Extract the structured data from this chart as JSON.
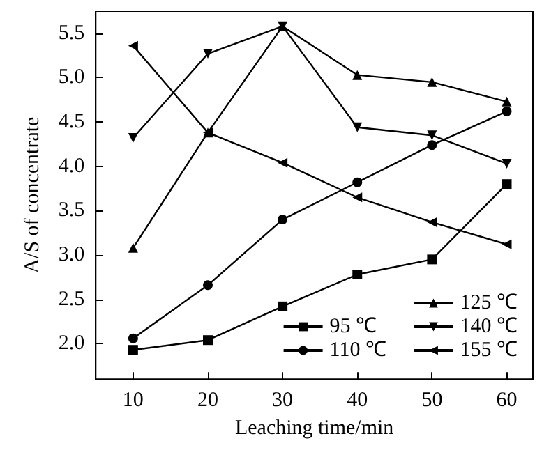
{
  "chart_data": {
    "type": "line",
    "xlabel": "Leaching time/min",
    "ylabel": "A/S of concentrate",
    "x": [
      10,
      20,
      30,
      40,
      50,
      60
    ],
    "xlim": [
      5,
      63.5
    ],
    "xticks": [
      10,
      20,
      30,
      40,
      50,
      60
    ],
    "ylim": [
      1.6,
      5.75
    ],
    "yticks": [
      {
        "value": 2,
        "label": "2.0"
      },
      2.5,
      {
        "value": 3,
        "label": "3.0"
      },
      3.5,
      {
        "value": 4,
        "label": "4.0"
      },
      4.5,
      {
        "value": 5,
        "label": "5.0"
      },
      5.5
    ],
    "legend": "bottom right",
    "grid": false,
    "line_style": "solid",
    "series": [
      {
        "name": "95 ℃",
        "color": "#000000",
        "marker": "square",
        "values": [
          1.93,
          2.04,
          2.42,
          2.78,
          2.95,
          3.8
        ]
      },
      {
        "name": "110 ℃",
        "color": "#000000",
        "marker": "circle",
        "values": [
          2.06,
          2.66,
          3.4,
          3.82,
          4.24,
          4.62
        ]
      },
      {
        "name": "125 ℃",
        "color": "#000000",
        "marker": "triangle",
        "values": [
          3.08,
          4.38,
          5.58,
          5.03,
          4.95,
          4.73
        ]
      },
      {
        "name": "140 ℃",
        "color": "#000000",
        "marker": "triangle-down",
        "values": [
          4.32,
          5.27,
          5.58,
          4.44,
          4.35,
          4.03
        ]
      },
      {
        "name": "155 ℃",
        "color": "#000000",
        "marker": "triangle-left",
        "values": [
          5.36,
          4.38,
          4.04,
          3.65,
          3.37,
          3.12
        ]
      }
    ]
  }
}
